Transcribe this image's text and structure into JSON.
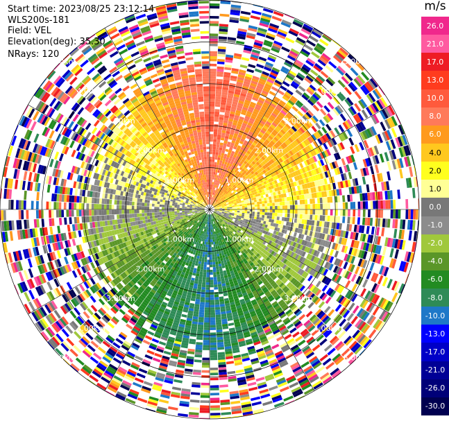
{
  "info": {
    "start_time": "Start time: 2023/08/25 23:12:14",
    "station": "WLS200s-181",
    "field": "Field: VEL",
    "elevation": "Elevation(deg): 35.30",
    "nrays": "NRays: 120"
  },
  "colorbar": {
    "unit": "m/s",
    "bins": [
      {
        "label": "26.0",
        "color": "#f0288c"
      },
      {
        "label": "21.0",
        "color": "#ff5aa0"
      },
      {
        "label": "17.0",
        "color": "#ee1c24"
      },
      {
        "label": "13.0",
        "color": "#ff3c1e"
      },
      {
        "label": "10.0",
        "color": "#ff5a3c"
      },
      {
        "label": "8.0",
        "color": "#ff7a5a"
      },
      {
        "label": "6.0",
        "color": "#ff9a1e"
      },
      {
        "label": "4.0",
        "color": "#ffc81e"
      },
      {
        "label": "2.0",
        "color": "#ffff1e"
      },
      {
        "label": "1.0",
        "color": "#ffff96"
      },
      {
        "label": "0.0",
        "color": "#787878"
      },
      {
        "label": "-1.0",
        "color": "#8c8c8c"
      },
      {
        "label": "-2.0",
        "color": "#a0c83c"
      },
      {
        "label": "-4.0",
        "color": "#5a9628"
      },
      {
        "label": "-6.0",
        "color": "#228b22"
      },
      {
        "label": "-8.0",
        "color": "#2e8b57"
      },
      {
        "label": "-10.0",
        "color": "#1e78c8"
      },
      {
        "label": "-13.0",
        "color": "#0000ff"
      },
      {
        "label": "-17.0",
        "color": "#0000c8"
      },
      {
        "label": "-21.0",
        "color": "#000096"
      },
      {
        "label": "-26.0",
        "color": "#000078"
      },
      {
        "label": "-30.0",
        "color": "#000050"
      }
    ]
  },
  "chart_data": {
    "type": "heatmap",
    "projection": "polar",
    "field": "VEL",
    "units": "m/s",
    "nrays": 120,
    "range_ring_labels": [
      "1.00km",
      "2.00km",
      "3.00km",
      "4.00km",
      "5.00km"
    ],
    "radial_velocity_by_sector": [
      {
        "sector": "north",
        "range_km": [
          0,
          3.5
        ],
        "value_ms": 8.0
      },
      {
        "sector": "north-east",
        "range_km": [
          0,
          3.0
        ],
        "value_ms": 4.0
      },
      {
        "sector": "east",
        "range_km": [
          0,
          3.0
        ],
        "value_ms": 1.0
      },
      {
        "sector": "south-east",
        "range_km": [
          0,
          3.0
        ],
        "value_ms": -4.0
      },
      {
        "sector": "south",
        "range_km": [
          0,
          3.5
        ],
        "value_ms": -10.0
      },
      {
        "sector": "south-west",
        "range_km": [
          0,
          3.0
        ],
        "value_ms": -6.0
      },
      {
        "sector": "west",
        "range_km": [
          0,
          3.0
        ],
        "value_ms": -1.0
      },
      {
        "sector": "north-west",
        "range_km": [
          0,
          3.0
        ],
        "value_ms": 2.0
      }
    ],
    "outer_range_km": [
      3.5,
      5.0
    ],
    "outer_range_note": "noise",
    "grid": true
  }
}
